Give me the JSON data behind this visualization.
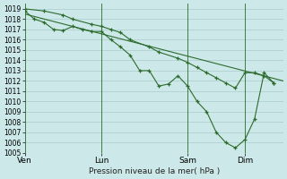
{
  "xlabel": "Pression niveau de la mer( hPa )",
  "bg_color": "#cce8e8",
  "grid_color": "#aacccc",
  "line_color": "#2d6b2d",
  "ylim": [
    1005,
    1019.5
  ],
  "yticks": [
    1005,
    1006,
    1007,
    1008,
    1009,
    1010,
    1011,
    1012,
    1013,
    1014,
    1015,
    1016,
    1017,
    1018,
    1019
  ],
  "xtick_labels": [
    "Ven",
    "Lun",
    "Sam",
    "Dim"
  ],
  "xtick_positions": [
    0,
    8,
    17,
    23
  ],
  "vline_positions": [
    0,
    8,
    17,
    23
  ],
  "xlim": [
    0,
    27
  ],
  "line1_x": [
    0,
    1,
    2,
    3,
    4,
    5,
    6,
    7,
    8,
    9,
    10,
    11,
    12,
    13,
    14,
    15,
    16,
    17,
    18,
    19,
    20,
    21,
    22,
    23,
    24,
    25,
    26
  ],
  "line1_y": [
    1018.8,
    1018.0,
    1017.7,
    1017.0,
    1016.9,
    1017.3,
    1017.0,
    1016.8,
    1016.8,
    1016.0,
    1015.3,
    1014.5,
    1013.0,
    1013.0,
    1011.5,
    1011.7,
    1012.5,
    1011.5,
    1010.0,
    1009.0,
    1007.0,
    1006.0,
    1005.5,
    1006.3,
    1008.3,
    1012.8,
    1011.8
  ],
  "line2_x": [
    0,
    2,
    4,
    5,
    7,
    8,
    9,
    10,
    11,
    13,
    14,
    16,
    17,
    18,
    19,
    20,
    21,
    22,
    23,
    24,
    25,
    26
  ],
  "line2_y": [
    1019.0,
    1018.8,
    1018.4,
    1018.0,
    1017.5,
    1017.3,
    1017.0,
    1016.7,
    1016.0,
    1015.3,
    1014.8,
    1014.2,
    1013.8,
    1013.3,
    1012.8,
    1012.3,
    1011.8,
    1011.3,
    1012.8,
    1012.8,
    1012.5,
    1011.8
  ],
  "line3_x": [
    0,
    27
  ],
  "line3_y": [
    1018.5,
    1012.0
  ]
}
